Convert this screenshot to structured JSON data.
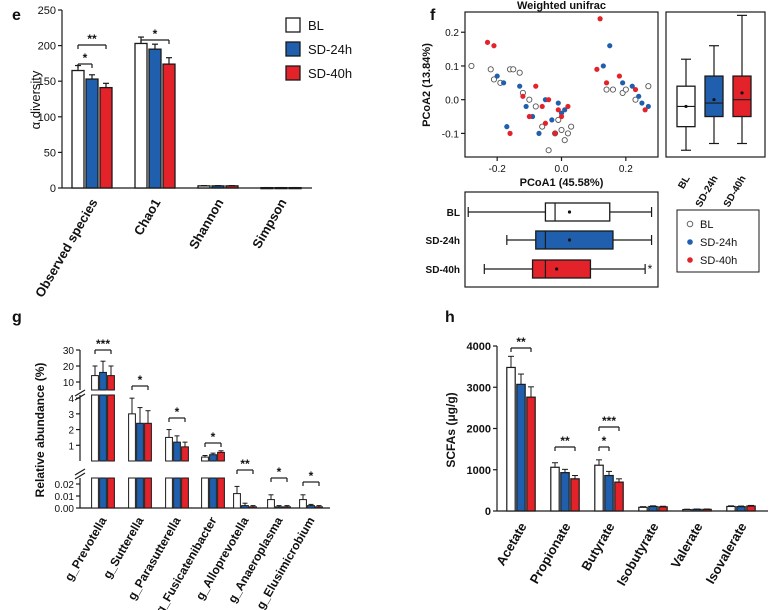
{
  "colors": {
    "bl": "#ffffff",
    "sd24": "#1f5fad",
    "sd40": "#e32229",
    "stroke": "#1a1a1a"
  },
  "chart_data": [
    {
      "panel": "e",
      "type": "bar",
      "categories": [
        "Observed species",
        "Chao1",
        "Shannon",
        "Simpson"
      ],
      "ylabel": "α diversity",
      "ylim": [
        0,
        250
      ],
      "yticks": [
        0,
        50,
        100,
        150,
        200,
        250
      ],
      "series": [
        {
          "name": "BL",
          "values": [
            165,
            203,
            3,
            0.5
          ],
          "errors": [
            7,
            9,
            0.3,
            0.1
          ]
        },
        {
          "name": "SD-24h",
          "values": [
            153,
            195,
            3,
            0.5
          ],
          "errors": [
            6,
            7,
            0.3,
            0.1
          ]
        },
        {
          "name": "SD-40h",
          "values": [
            141,
            174,
            3,
            0.5
          ],
          "errors": [
            6,
            9,
            0.3,
            0.1
          ]
        }
      ],
      "significance": [
        {
          "group": 0,
          "from": 0,
          "to": 1,
          "label": "*"
        },
        {
          "group": 0,
          "from": 0,
          "to": 2,
          "label": "**"
        },
        {
          "group": 1,
          "from": 0,
          "to": 2,
          "label": "*"
        }
      ],
      "legend": [
        "BL",
        "SD-24h",
        "SD-40h"
      ]
    },
    {
      "panel": "f",
      "type": "scatter",
      "title": "Weighted unifrac",
      "xlabel": "PCoA1 (45.58%)",
      "ylabel": "PCoA2 (13.84%)",
      "xlim": [
        -0.3,
        0.3
      ],
      "ylim": [
        -0.17,
        0.26
      ],
      "xticks": [
        -0.2,
        0.0,
        0.2
      ],
      "yticks": [
        -0.1,
        0.0,
        0.1,
        0.2
      ],
      "series": [
        {
          "name": "BL",
          "points": [
            [
              -0.28,
              0.1
            ],
            [
              -0.22,
              0.09
            ],
            [
              -0.21,
              0.06
            ],
            [
              -0.19,
              0.05
            ],
            [
              -0.16,
              0.09
            ],
            [
              -0.15,
              0.09
            ],
            [
              -0.13,
              0.08
            ],
            [
              -0.12,
              0.02
            ],
            [
              -0.1,
              0.0
            ],
            [
              -0.08,
              -0.02
            ],
            [
              -0.06,
              -0.08
            ],
            [
              -0.04,
              -0.15
            ],
            [
              -0.02,
              -0.1
            ],
            [
              -0.01,
              -0.06
            ],
            [
              0.0,
              -0.09
            ],
            [
              0.01,
              -0.12
            ],
            [
              0.02,
              -0.1
            ],
            [
              0.03,
              -0.08
            ],
            [
              0.14,
              0.03
            ],
            [
              0.16,
              0.03
            ],
            [
              0.19,
              0.02
            ],
            [
              0.2,
              0.03
            ],
            [
              0.23,
              0.0
            ],
            [
              0.27,
              0.04
            ]
          ]
        },
        {
          "name": "SD-24h",
          "points": [
            [
              -0.2,
              0.07
            ],
            [
              -0.18,
              0.05
            ],
            [
              -0.17,
              -0.08
            ],
            [
              -0.13,
              0.04
            ],
            [
              -0.11,
              -0.02
            ],
            [
              -0.09,
              -0.05
            ],
            [
              -0.07,
              -0.1
            ],
            [
              -0.05,
              0.0
            ],
            [
              -0.03,
              -0.06
            ],
            [
              -0.01,
              -0.01
            ],
            [
              0.0,
              -0.04
            ],
            [
              0.01,
              -0.03
            ],
            [
              0.13,
              0.1
            ],
            [
              0.15,
              0.16
            ],
            [
              0.19,
              0.05
            ],
            [
              0.22,
              0.04
            ],
            [
              0.24,
              0.01
            ],
            [
              0.25,
              -0.01
            ],
            [
              0.27,
              -0.02
            ]
          ]
        },
        {
          "name": "SD-40h",
          "points": [
            [
              -0.23,
              0.17
            ],
            [
              -0.21,
              0.16
            ],
            [
              -0.16,
              -0.1
            ],
            [
              -0.12,
              0.01
            ],
            [
              -0.1,
              -0.05
            ],
            [
              -0.08,
              0.04
            ],
            [
              -0.06,
              -0.02
            ],
            [
              -0.05,
              -0.07
            ],
            [
              -0.04,
              0.0
            ],
            [
              -0.02,
              -0.1
            ],
            [
              -0.01,
              -0.03
            ],
            [
              0.0,
              -0.05
            ],
            [
              0.02,
              -0.02
            ],
            [
              0.11,
              0.09
            ],
            [
              0.12,
              0.24
            ],
            [
              0.14,
              0.05
            ],
            [
              0.18,
              0.07
            ],
            [
              0.23,
              0.03
            ],
            [
              0.26,
              -0.03
            ]
          ]
        }
      ],
      "side_box_y": {
        "categories": [
          "BL",
          "SD-24h",
          "SD-40h"
        ],
        "boxes": [
          {
            "min": -0.15,
            "q1": -0.08,
            "median": -0.02,
            "q3": 0.04,
            "max": 0.12,
            "mean": -0.02
          },
          {
            "min": -0.13,
            "q1": -0.05,
            "median": -0.01,
            "q3": 0.07,
            "max": 0.16,
            "mean": 0.0
          },
          {
            "min": -0.13,
            "q1": -0.05,
            "median": 0.0,
            "q3": 0.07,
            "max": 0.25,
            "mean": 0.02
          }
        ]
      },
      "bottom_box_x": {
        "categories": [
          "BL",
          "SD-24h",
          "SD-40h"
        ],
        "boxes": [
          {
            "min": -0.29,
            "q1": -0.05,
            "median": -0.02,
            "q3": 0.15,
            "max": 0.28,
            "mean": 0.0
          },
          {
            "min": -0.17,
            "q1": -0.08,
            "median": -0.05,
            "q3": 0.16,
            "max": 0.28,
            "mean": 0.0
          },
          {
            "min": -0.24,
            "q1": -0.09,
            "median": -0.05,
            "q3": 0.09,
            "max": 0.26,
            "mean": -0.04
          }
        ],
        "outlier_label": "*"
      },
      "legend": [
        "BL",
        "SD-24h",
        "SD-40h"
      ]
    },
    {
      "panel": "g",
      "type": "bar",
      "categories": [
        "g_Prevotella",
        "g_Sutterella",
        "g_Parasutterella",
        "g_Fusicatenibacter",
        "g_Alloprevotella",
        "g_Anaeroplasma",
        "g_Elusimicrobium"
      ],
      "ylabel": "Relative abundance (%)",
      "broken_axis_ticks": [
        "0.00",
        "0.01",
        "0.02",
        "1",
        "2",
        "3",
        "4",
        "10",
        "20",
        "30"
      ],
      "series": [
        {
          "name": "BL",
          "values": [
            14,
            3.0,
            1.5,
            0.25,
            0.012,
            0.007,
            0.007
          ],
          "errors": [
            6,
            1.0,
            0.5,
            0.1,
            0.006,
            0.004,
            0.004
          ]
        },
        {
          "name": "SD-24h",
          "values": [
            16,
            2.4,
            1.2,
            0.4,
            0.002,
            0.001,
            0.002
          ],
          "errors": [
            7,
            1.0,
            0.4,
            0.1,
            0.002,
            0.001,
            0.001
          ]
        },
        {
          "name": "SD-40h",
          "values": [
            14,
            2.4,
            0.9,
            0.55,
            0.001,
            0.001,
            0.001
          ],
          "errors": [
            6,
            0.8,
            0.3,
            0.1,
            0.001,
            0.001,
            0.001
          ]
        }
      ],
      "significance": [
        {
          "group": 0,
          "label": "***"
        },
        {
          "group": 1,
          "label": "*"
        },
        {
          "group": 2,
          "label": "*"
        },
        {
          "group": 3,
          "label": "*"
        },
        {
          "group": 4,
          "label": "**"
        },
        {
          "group": 5,
          "label": "*"
        },
        {
          "group": 6,
          "label": "*"
        }
      ]
    },
    {
      "panel": "h",
      "type": "bar",
      "categories": [
        "Acetate",
        "Propionate",
        "Butyrate",
        "Isobutyrate",
        "Valerate",
        "Isovalerate"
      ],
      "ylabel": "SCFAs (μg/g)",
      "ylim": [
        0,
        4000
      ],
      "yticks": [
        0,
        1000,
        2000,
        3000,
        4000
      ],
      "series": [
        {
          "name": "BL",
          "values": [
            3480,
            1060,
            1110,
            90,
            35,
            110
          ],
          "errors": [
            270,
            110,
            130,
            15,
            8,
            15
          ]
        },
        {
          "name": "SD-24h",
          "values": [
            3070,
            930,
            860,
            110,
            40,
            105
          ],
          "errors": [
            250,
            80,
            100,
            15,
            8,
            15
          ]
        },
        {
          "name": "SD-40h",
          "values": [
            2760,
            780,
            700,
            100,
            40,
            120
          ],
          "errors": [
            250,
            80,
            80,
            15,
            8,
            15
          ]
        }
      ],
      "significance": [
        {
          "group": 0,
          "from": 0,
          "to": 2,
          "label": "**"
        },
        {
          "group": 1,
          "from": 0,
          "to": 2,
          "label": "**"
        },
        {
          "group": 2,
          "from": 0,
          "to": 1,
          "label": "*"
        },
        {
          "group": 2,
          "from": 0,
          "to": 2,
          "label": "***"
        }
      ]
    }
  ]
}
